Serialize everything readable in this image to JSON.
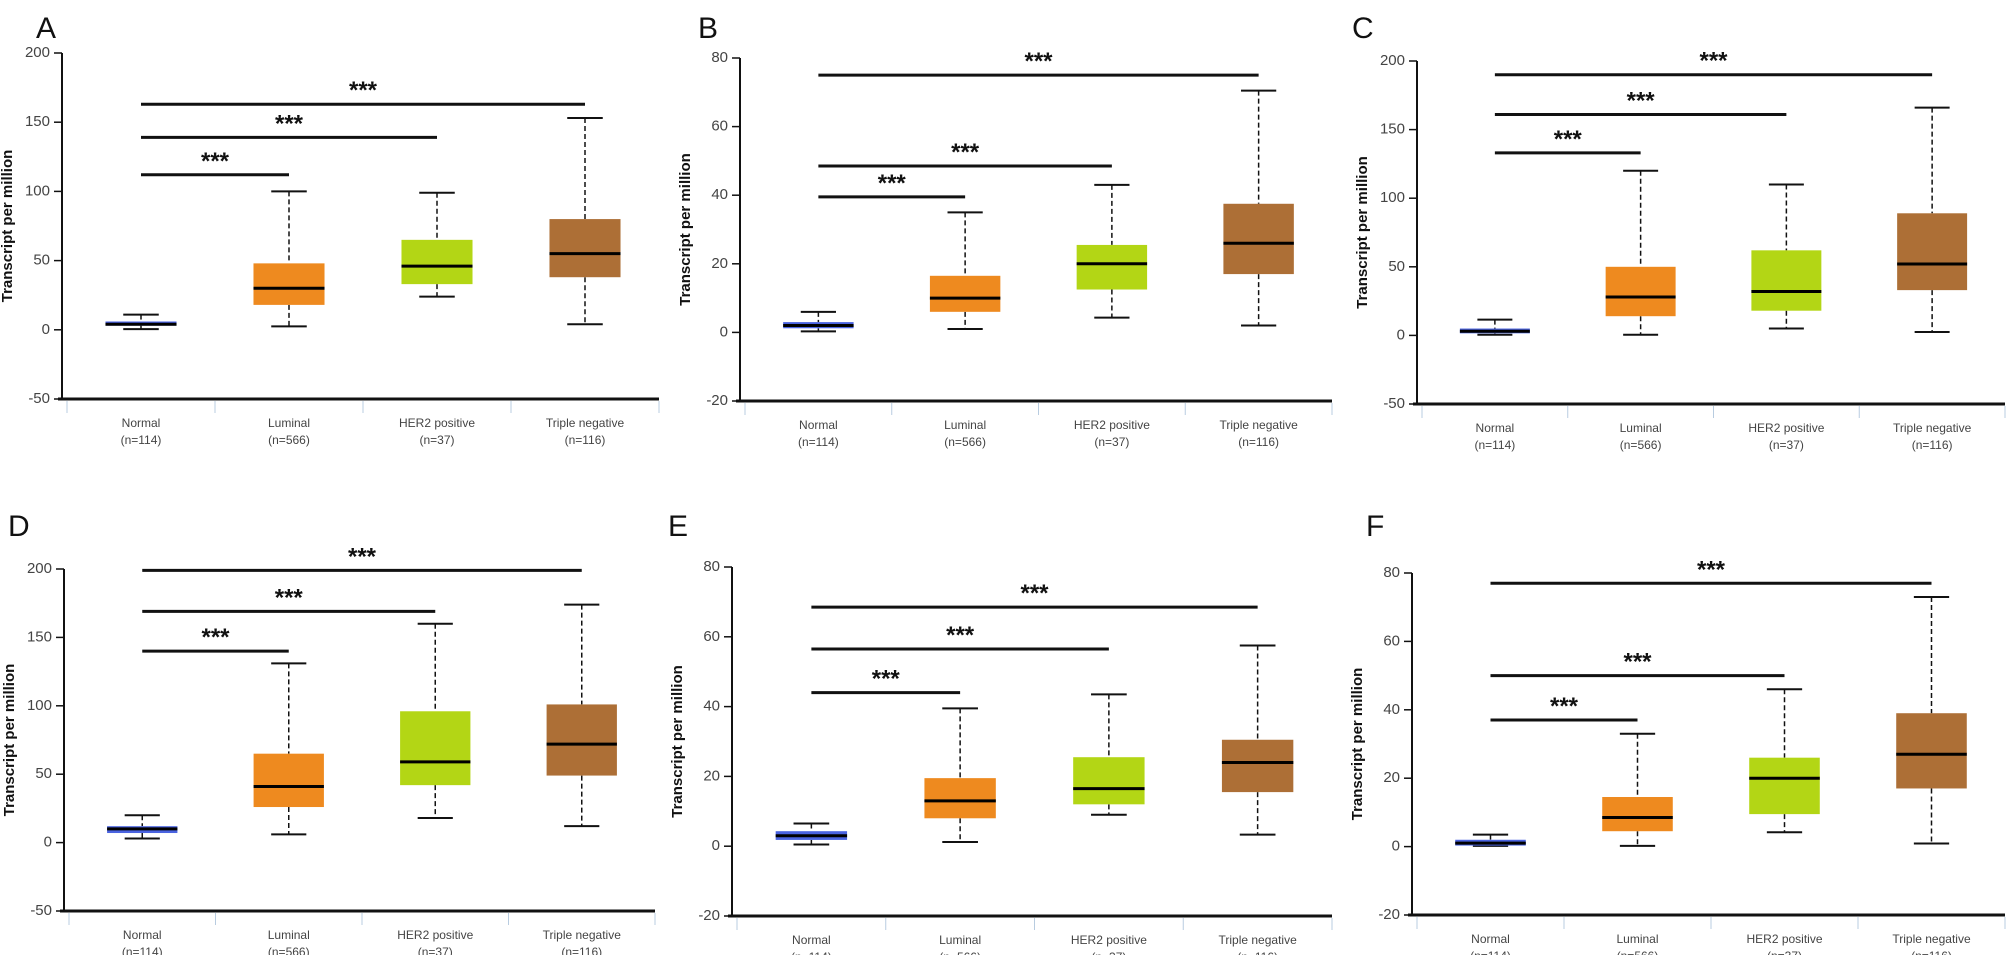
{
  "chart_data": {
    "type": "box",
    "categories": [
      "Normal",
      "Luminal",
      "HER2 positive",
      "Triple negative"
    ],
    "category_counts": [
      "(n=114)",
      "(n=566)",
      "(n=37)",
      "(n=116)"
    ],
    "colors": [
      "#4a63e0",
      "#ee8a1f",
      "#b3d615",
      "#ad6f36"
    ],
    "ylabel": "Transcript per million",
    "significance_label": "***",
    "panels": [
      {
        "label": "A",
        "ylim": [
          -50,
          200
        ],
        "yticks": [
          -50,
          0,
          50,
          100,
          150,
          200
        ],
        "boxes": [
          [
            0.5,
            3,
            4,
            6,
            11
          ],
          [
            2.5,
            18,
            30,
            48,
            100
          ],
          [
            24,
            33,
            46,
            65,
            99
          ],
          [
            4,
            38,
            55,
            80,
            153
          ]
        ],
        "sig_bars": [
          {
            "to": 1,
            "y": 112
          },
          {
            "to": 2,
            "y": 139
          },
          {
            "to": 3,
            "y": 163
          }
        ]
      },
      {
        "label": "B",
        "ylim": [
          -20,
          80
        ],
        "yticks": [
          -20,
          0,
          20,
          40,
          60,
          80
        ],
        "boxes": [
          [
            0.3,
            1.2,
            2,
            3,
            6
          ],
          [
            1,
            6,
            10,
            16.5,
            35
          ],
          [
            4.3,
            12.5,
            20,
            25.5,
            43
          ],
          [
            2,
            17,
            26,
            37.5,
            70.5
          ]
        ],
        "sig_bars": [
          {
            "to": 1,
            "y": 39.5
          },
          {
            "to": 2,
            "y": 48.5
          },
          {
            "to": 3,
            "y": 75
          }
        ]
      },
      {
        "label": "C",
        "ylim": [
          -50,
          200
        ],
        "yticks": [
          -50,
          0,
          50,
          100,
          150,
          200
        ],
        "boxes": [
          [
            0.5,
            1.5,
            3,
            5,
            11.5
          ],
          [
            0.5,
            14,
            28,
            50,
            120
          ],
          [
            5,
            18,
            32,
            62,
            110
          ],
          [
            2.5,
            33,
            52,
            89,
            166
          ]
        ],
        "sig_bars": [
          {
            "to": 1,
            "y": 133
          },
          {
            "to": 2,
            "y": 161
          },
          {
            "to": 3,
            "y": 190
          }
        ]
      },
      {
        "label": "D",
        "ylim": [
          -50,
          200
        ],
        "yticks": [
          -50,
          0,
          50,
          100,
          150,
          200
        ],
        "boxes": [
          [
            3,
            7,
            10,
            12,
            20
          ],
          [
            6,
            26,
            41,
            65,
            131
          ],
          [
            18,
            42,
            59,
            96,
            160
          ],
          [
            12,
            49,
            72,
            101,
            174
          ]
        ],
        "sig_bars": [
          {
            "to": 1,
            "y": 140
          },
          {
            "to": 2,
            "y": 169
          },
          {
            "to": 3,
            "y": 199
          }
        ]
      },
      {
        "label": "E",
        "ylim": [
          -20,
          80
        ],
        "yticks": [
          -20,
          0,
          20,
          40,
          60,
          80
        ],
        "boxes": [
          [
            0.5,
            1.8,
            3,
            4.3,
            6.5
          ],
          [
            1.2,
            8,
            13,
            19.5,
            39.5
          ],
          [
            9,
            12,
            16.5,
            25.5,
            43.5
          ],
          [
            3.3,
            15.5,
            24,
            30.5,
            57.5
          ]
        ],
        "sig_bars": [
          {
            "to": 1,
            "y": 44
          },
          {
            "to": 2,
            "y": 56.5
          },
          {
            "to": 3,
            "y": 68.5
          }
        ]
      },
      {
        "label": "F",
        "ylim": [
          -20,
          80
        ],
        "yticks": [
          -20,
          0,
          20,
          40,
          60,
          80
        ],
        "boxes": [
          [
            0.2,
            0.3,
            1,
            2,
            3.5
          ],
          [
            0.2,
            4.5,
            8.5,
            14.5,
            33
          ],
          [
            4.2,
            9.5,
            20,
            26,
            46
          ],
          [
            0.9,
            17,
            27,
            39,
            73
          ]
        ],
        "sig_bars": [
          {
            "to": 1,
            "y": 37
          },
          {
            "to": 2,
            "y": 50
          },
          {
            "to": 3,
            "y": 77
          }
        ]
      }
    ]
  }
}
